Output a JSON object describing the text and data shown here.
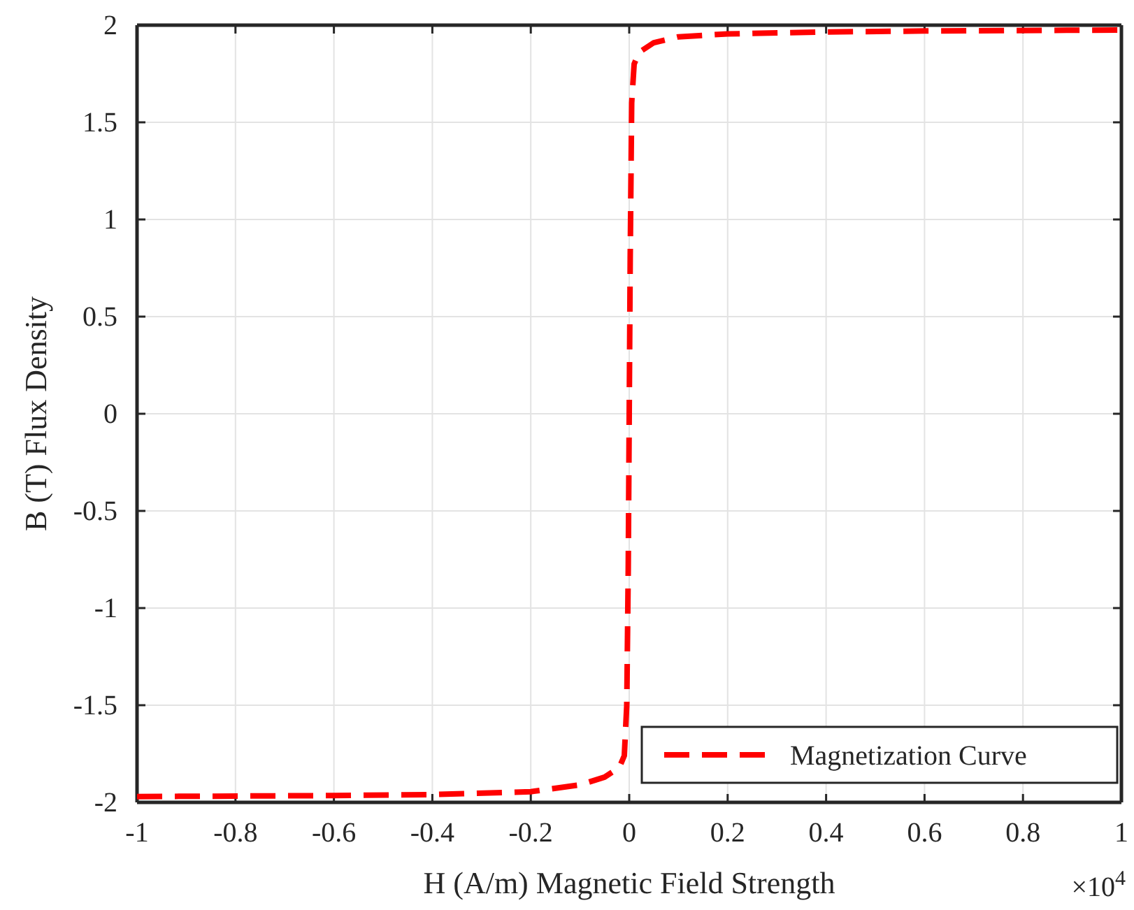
{
  "chart_data": {
    "type": "line",
    "xlabel": "H (A/m) Magnetic Field Strength",
    "ylabel": "B (T) Flux Density",
    "annotations": [
      "×10$^{4}$"
    ],
    "x": [
      -1,
      -0.6,
      -0.4,
      -0.2,
      -0.1,
      -0.05,
      -0.02,
      -0.01,
      -0.005,
      -0.002,
      0,
      0.002,
      0.005,
      0.01,
      0.02,
      0.05,
      0.1,
      0.2,
      0.4,
      0.6,
      1
    ],
    "series": [
      {
        "name": "Magnetization Curve",
        "color": "#ff0000",
        "values": [
          -1.97,
          -1.965,
          -1.96,
          -1.945,
          -1.91,
          -1.87,
          -1.82,
          -1.76,
          -1.5,
          -0.8,
          0,
          0.8,
          1.6,
          1.8,
          1.86,
          1.91,
          1.94,
          1.955,
          1.965,
          1.97,
          1.975
        ]
      }
    ],
    "xlim": [
      -1,
      1
    ],
    "xticks": [
      -1,
      -0.8,
      -0.6,
      -0.4,
      -0.2,
      0,
      0.2,
      0.4,
      0.6,
      0.8,
      1
    ],
    "ylim": [
      -2,
      2
    ],
    "yticks": [
      -2,
      -1.5,
      -1,
      -0.5,
      0,
      0.5,
      1,
      1.5,
      2
    ],
    "grid": true,
    "legend": "bottom right",
    "line_style": "dashed",
    "marker": "none"
  }
}
